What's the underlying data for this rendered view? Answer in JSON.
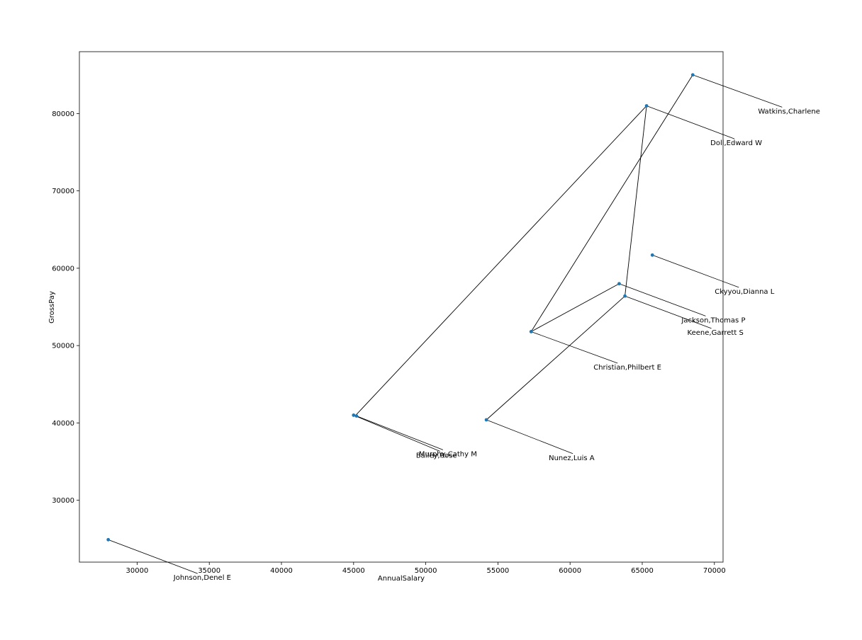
{
  "chart_data": {
    "type": "scatter",
    "title": "",
    "xlabel": "AnnualSalary",
    "ylabel": "GrossPay",
    "xlim": [
      26000,
      70600
    ],
    "ylim": [
      22000,
      88000
    ],
    "xticks": [
      30000,
      35000,
      40000,
      45000,
      50000,
      55000,
      60000,
      65000,
      70000
    ],
    "yticks": [
      30000,
      40000,
      50000,
      60000,
      70000,
      80000
    ],
    "grid": false,
    "legend": "none",
    "marker_color": "#1f77b4",
    "line_color": "#000000",
    "points": [
      {
        "name": "Watkins,Charlene",
        "x": 68500,
        "y": 85000,
        "label_x": 68700,
        "label_y": 80000
      },
      {
        "name": "Doll,Edward W",
        "x": 65300,
        "y": 81000,
        "label_x": 65400,
        "label_y": 75900
      },
      {
        "name": "Ckyyou,Dianna L",
        "x": 65700,
        "y": 61700,
        "label_x": 65700,
        "label_y": 56700
      },
      {
        "name": "Jackson,Thomas P",
        "x": 63400,
        "y": 58000,
        "label_x": 63400,
        "label_y": 53000
      },
      {
        "name": "Keene,Garrett S",
        "x": 63800,
        "y": 56400,
        "label_x": 63800,
        "label_y": 51400
      },
      {
        "name": "Christian,Philbert E",
        "x": 57300,
        "y": 51800,
        "label_x": 57300,
        "label_y": 46900
      },
      {
        "name": "Murphy,Cathy M",
        "x": 45200,
        "y": 40900,
        "label_x": 45200,
        "label_y": 35700
      },
      {
        "name": "Bailey,Rose",
        "x": 45000,
        "y": 41000,
        "label_x": 45000,
        "label_y": 35500
      },
      {
        "name": "Nunez,Luis A",
        "x": 54200,
        "y": 40400,
        "label_x": 54200,
        "label_y": 35200
      },
      {
        "name": "Johnson,Denel E",
        "x": 28000,
        "y": 24900,
        "label_x": 28200,
        "label_y": 19700
      }
    ],
    "connections": [
      [
        45100,
        40900,
        65300,
        81000
      ],
      [
        65300,
        81000,
        63800,
        56400
      ],
      [
        63800,
        56400,
        54200,
        40400
      ],
      [
        68500,
        85000,
        57300,
        51800
      ],
      [
        57300,
        51800,
        63400,
        58000
      ]
    ]
  }
}
